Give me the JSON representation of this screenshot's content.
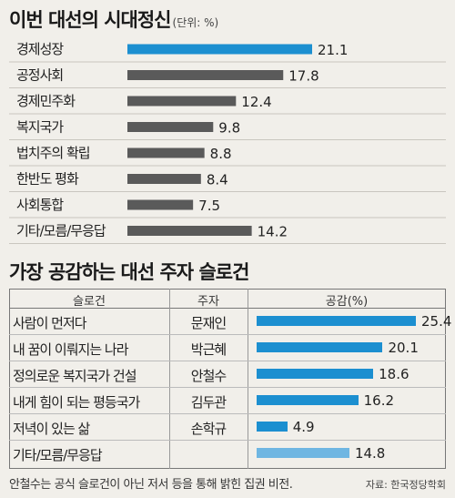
{
  "chart_data": [
    {
      "type": "bar",
      "title": "이번 대선의 시대정신",
      "unit": "(단위: %)",
      "categories": [
        "경제성장",
        "공정사회",
        "경제민주화",
        "복지국가",
        "법치주의 확립",
        "한반도 평화",
        "사회통합",
        "기타/모름/무응답"
      ],
      "values": [
        21.1,
        17.8,
        12.4,
        9.8,
        8.8,
        8.4,
        7.5,
        14.2
      ],
      "value_labels": [
        "21.1",
        "17.8",
        "12.4",
        "9.8",
        "8.8",
        "8.4",
        "7.5",
        "14.2"
      ],
      "colors": [
        "#1c8fd0",
        "#5a5a5a",
        "#5a5a5a",
        "#5a5a5a",
        "#5a5a5a",
        "#5a5a5a",
        "#5a5a5a",
        "#5a5a5a"
      ],
      "xlim": [
        0,
        21.1
      ]
    },
    {
      "type": "table",
      "title": "가장 공감하는 대선 주자 슬로건",
      "columns": [
        "슬로건",
        "주자",
        "공감(%)"
      ],
      "rows": [
        {
          "slogan": "사람이 먼저다",
          "author": "문재인",
          "value": 25.4,
          "label": "25.4",
          "color": "#1c8fd0"
        },
        {
          "slogan": "내 꿈이 이뤄지는 나라",
          "author": "박근혜",
          "value": 20.1,
          "label": "20.1",
          "color": "#1c8fd0"
        },
        {
          "slogan": "정의로운 복지국가 건설",
          "author": "안철수",
          "value": 18.6,
          "label": "18.6",
          "color": "#1c8fd0"
        },
        {
          "slogan": "내게 힘이 되는 평등국가",
          "author": "김두관",
          "value": 16.2,
          "label": "16.2",
          "color": "#1c8fd0"
        },
        {
          "slogan": "저녁이 있는 삶",
          "author": "손학규",
          "value": 4.9,
          "label": "4.9",
          "color": "#1c8fd0"
        },
        {
          "slogan": "기타/모름/무응답",
          "author": "",
          "value": 14.8,
          "label": "14.8",
          "color": "#6fb6e2"
        }
      ],
      "xlim": [
        0,
        25.4
      ]
    }
  ],
  "footnote": "안철수는 공식 슬로건이 아닌 저서 등을 통해 밝힌 집권 비전.",
  "source": "자료: 한국정당학회"
}
